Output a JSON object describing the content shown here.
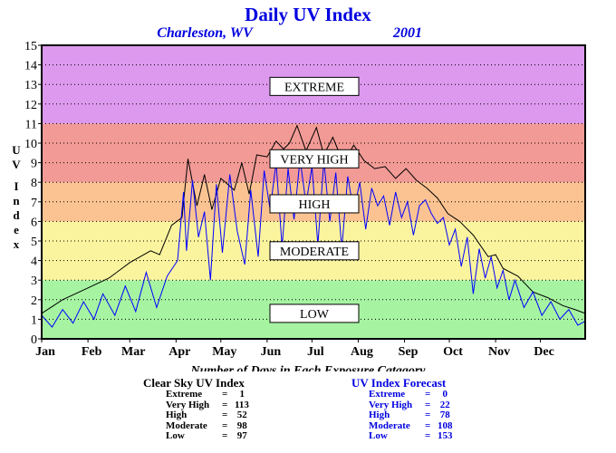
{
  "colors": {
    "extreme": "#dd99ee",
    "very_high": "#f29a95",
    "high": "#fbc392",
    "moderate": "#fbf49e",
    "low": "#a6f4a1",
    "clear_sky_line": "#000000",
    "forecast_line": "#0000ff",
    "title": "#0000e0"
  },
  "chart_data": {
    "type": "line",
    "title": "Daily UV Index",
    "subtitle_location": "Charleston, WV",
    "subtitle_year": "2001",
    "ylabel": "UV Index",
    "xlabel": "",
    "ylim": [
      0,
      15
    ],
    "yticks": [
      "0",
      "1",
      "2",
      "3",
      "4",
      "5",
      "6",
      "7",
      "8",
      "9",
      "10",
      "11",
      "12",
      "13",
      "14",
      "15"
    ],
    "months": [
      "Jan",
      "Feb",
      "Mar",
      "Apr",
      "May",
      "Jun",
      "Jul",
      "Aug",
      "Sep",
      "Oct",
      "Nov",
      "Dec"
    ],
    "grid": true,
    "bands": [
      {
        "label": "LOW",
        "from": 0,
        "to": 3,
        "color_key": "low",
        "label_at": 1.3
      },
      {
        "label": "MODERATE",
        "from": 3,
        "to": 6,
        "color_key": "moderate",
        "label_at": 4.5
      },
      {
        "label": "HIGH",
        "from": 6,
        "to": 8,
        "color_key": "high",
        "label_at": 6.9
      },
      {
        "label": "VERY HIGH",
        "from": 8,
        "to": 11,
        "color_key": "very_high",
        "label_at": 9.2
      },
      {
        "label": "EXTREME",
        "from": 11,
        "to": 15,
        "color_key": "extreme",
        "label_at": 12.9
      }
    ],
    "series": [
      {
        "name": "Clear Sky UV Index",
        "color_key": "clear_sky_line",
        "x_day": [
          1,
          15,
          32,
          46,
          60,
          74,
          80,
          88,
          95,
          99,
          105,
          110,
          115,
          121,
          130,
          135,
          140,
          145,
          152,
          158,
          163,
          167,
          172,
          178,
          185,
          190,
          196,
          203,
          210,
          217,
          224,
          231,
          238,
          245,
          252,
          259,
          266,
          273,
          281,
          290,
          300,
          305,
          310,
          320,
          330,
          340,
          350,
          358,
          365
        ],
        "y": [
          1.3,
          2.0,
          2.6,
          3.1,
          3.9,
          4.5,
          4.3,
          5.8,
          6.2,
          9.2,
          6.8,
          8.4,
          6.6,
          8.2,
          7.6,
          9.0,
          7.4,
          9.4,
          9.3,
          10.1,
          9.7,
          10.0,
          10.9,
          9.6,
          10.8,
          9.4,
          10.3,
          9.0,
          9.9,
          9.1,
          8.7,
          8.8,
          8.2,
          8.7,
          8.1,
          7.7,
          7.2,
          6.4,
          6.0,
          5.3,
          4.2,
          4.3,
          3.6,
          3.2,
          2.4,
          2.1,
          1.7,
          1.5,
          1.3
        ]
      },
      {
        "name": "UV Index Forecast",
        "color_key": "forecast_line",
        "x_day": [
          1,
          8,
          15,
          22,
          29,
          36,
          42,
          50,
          57,
          64,
          71,
          78,
          85,
          92,
          96,
          98,
          102,
          106,
          110,
          114,
          118,
          122,
          127,
          132,
          137,
          141,
          146,
          150,
          154,
          158,
          162,
          166,
          170,
          174,
          178,
          182,
          186,
          190,
          194,
          198,
          202,
          206,
          210,
          214,
          218,
          222,
          226,
          230,
          234,
          238,
          242,
          246,
          250,
          254,
          258,
          262,
          266,
          270,
          274,
          278,
          282,
          286,
          290,
          294,
          298,
          302,
          306,
          310,
          314,
          318,
          324,
          330,
          336,
          342,
          348,
          354,
          360,
          365
        ],
        "y": [
          1.2,
          0.6,
          1.5,
          0.8,
          1.9,
          1.0,
          2.3,
          1.2,
          2.7,
          1.4,
          3.4,
          1.6,
          3.2,
          4.0,
          7.5,
          4.5,
          8.1,
          5.2,
          6.5,
          3.0,
          7.9,
          4.4,
          8.4,
          5.5,
          3.8,
          7.6,
          4.2,
          8.6,
          6.6,
          9.0,
          4.7,
          8.7,
          6.1,
          9.2,
          6.9,
          8.8,
          4.8,
          9.1,
          6.0,
          8.5,
          4.6,
          8.3,
          6.5,
          8.0,
          5.6,
          7.7,
          6.8,
          7.3,
          5.8,
          7.5,
          6.2,
          7.0,
          5.3,
          6.8,
          7.1,
          6.4,
          5.9,
          6.2,
          4.8,
          5.6,
          3.7,
          5.2,
          2.3,
          4.6,
          3.1,
          4.2,
          2.6,
          3.5,
          2.0,
          3.0,
          1.6,
          2.4,
          1.2,
          1.9,
          1.0,
          1.5,
          0.7,
          0.9
        ]
      }
    ]
  },
  "stats": {
    "heading": "Number of Days in Each Exposure Catagory",
    "clear_sky": {
      "title": "Clear Sky UV Index",
      "rows": [
        {
          "label": "Extreme",
          "value": "1"
        },
        {
          "label": "Very High",
          "value": "113"
        },
        {
          "label": "High",
          "value": "52"
        },
        {
          "label": "Moderate",
          "value": "98"
        },
        {
          "label": "Low",
          "value": "97"
        }
      ]
    },
    "forecast": {
      "title": "UV Index Forecast",
      "rows": [
        {
          "label": "Extreme",
          "value": "0"
        },
        {
          "label": "Very High",
          "value": "22"
        },
        {
          "label": "High",
          "value": "78"
        },
        {
          "label": "Moderate",
          "value": "108"
        },
        {
          "label": "Low",
          "value": "153"
        }
      ]
    }
  }
}
